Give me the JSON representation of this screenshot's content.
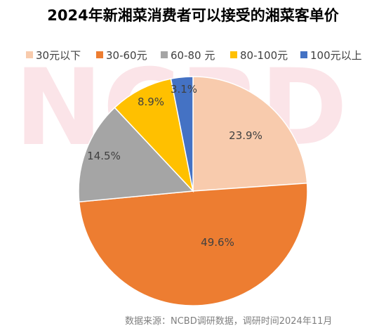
{
  "watermark": "NCBD",
  "source": "数据来源：NCBD调研数据，调研时间2024年11月",
  "chart_data": {
    "type": "pie",
    "title": "2024年新湘菜消费者可以接受的湘菜客单价",
    "categories": [
      "30元以下",
      "30-60元",
      "60-80 元",
      "80-100元",
      "100元以上"
    ],
    "values": [
      23.9,
      49.6,
      14.5,
      8.9,
      3.1
    ],
    "colors": [
      "#F8CBAD",
      "#ED7D31",
      "#A5A5A5",
      "#FFC000",
      "#4472C4"
    ],
    "legend": "top"
  }
}
